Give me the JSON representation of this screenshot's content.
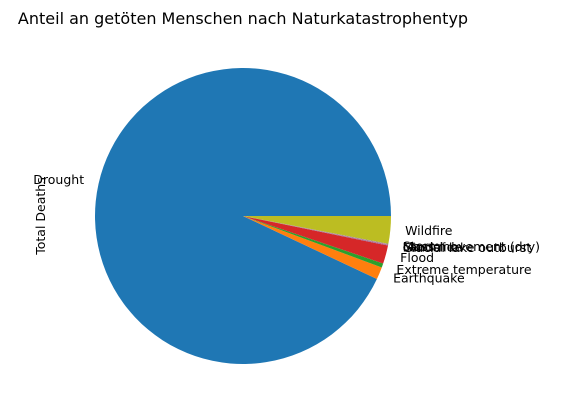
{
  "chart_data": {
    "type": "pie",
    "title": "Anteil an getöten Menschen nach Naturkatastrophentyp",
    "ylabel": "Total Deaths",
    "start_angle_deg": 0,
    "direction": "counterclockwise",
    "slices": [
      {
        "label": "Drought",
        "value": 93.0,
        "color": "#1f77b4"
      },
      {
        "label": "Earthquake",
        "value": 1.35,
        "color": "#ff7f0e"
      },
      {
        "label": "Extreme temperature",
        "value": 0.45,
        "color": "#2ca02c"
      },
      {
        "label": "Flood",
        "value": 2.0,
        "color": "#d62728"
      },
      {
        "label": "Glacial lake outburst",
        "value": 0.05,
        "color": "#9467bd"
      },
      {
        "label": "Landslide",
        "value": 0.05,
        "color": "#8c564b"
      },
      {
        "label": "Mass movement (dry)",
        "value": 0.05,
        "color": "#e377c2"
      },
      {
        "label": "Storm",
        "value": 0.05,
        "color": "#7f7f7f"
      },
      {
        "label": "Wildfire",
        "value": 3.0,
        "color": "#bcbd22"
      }
    ]
  }
}
